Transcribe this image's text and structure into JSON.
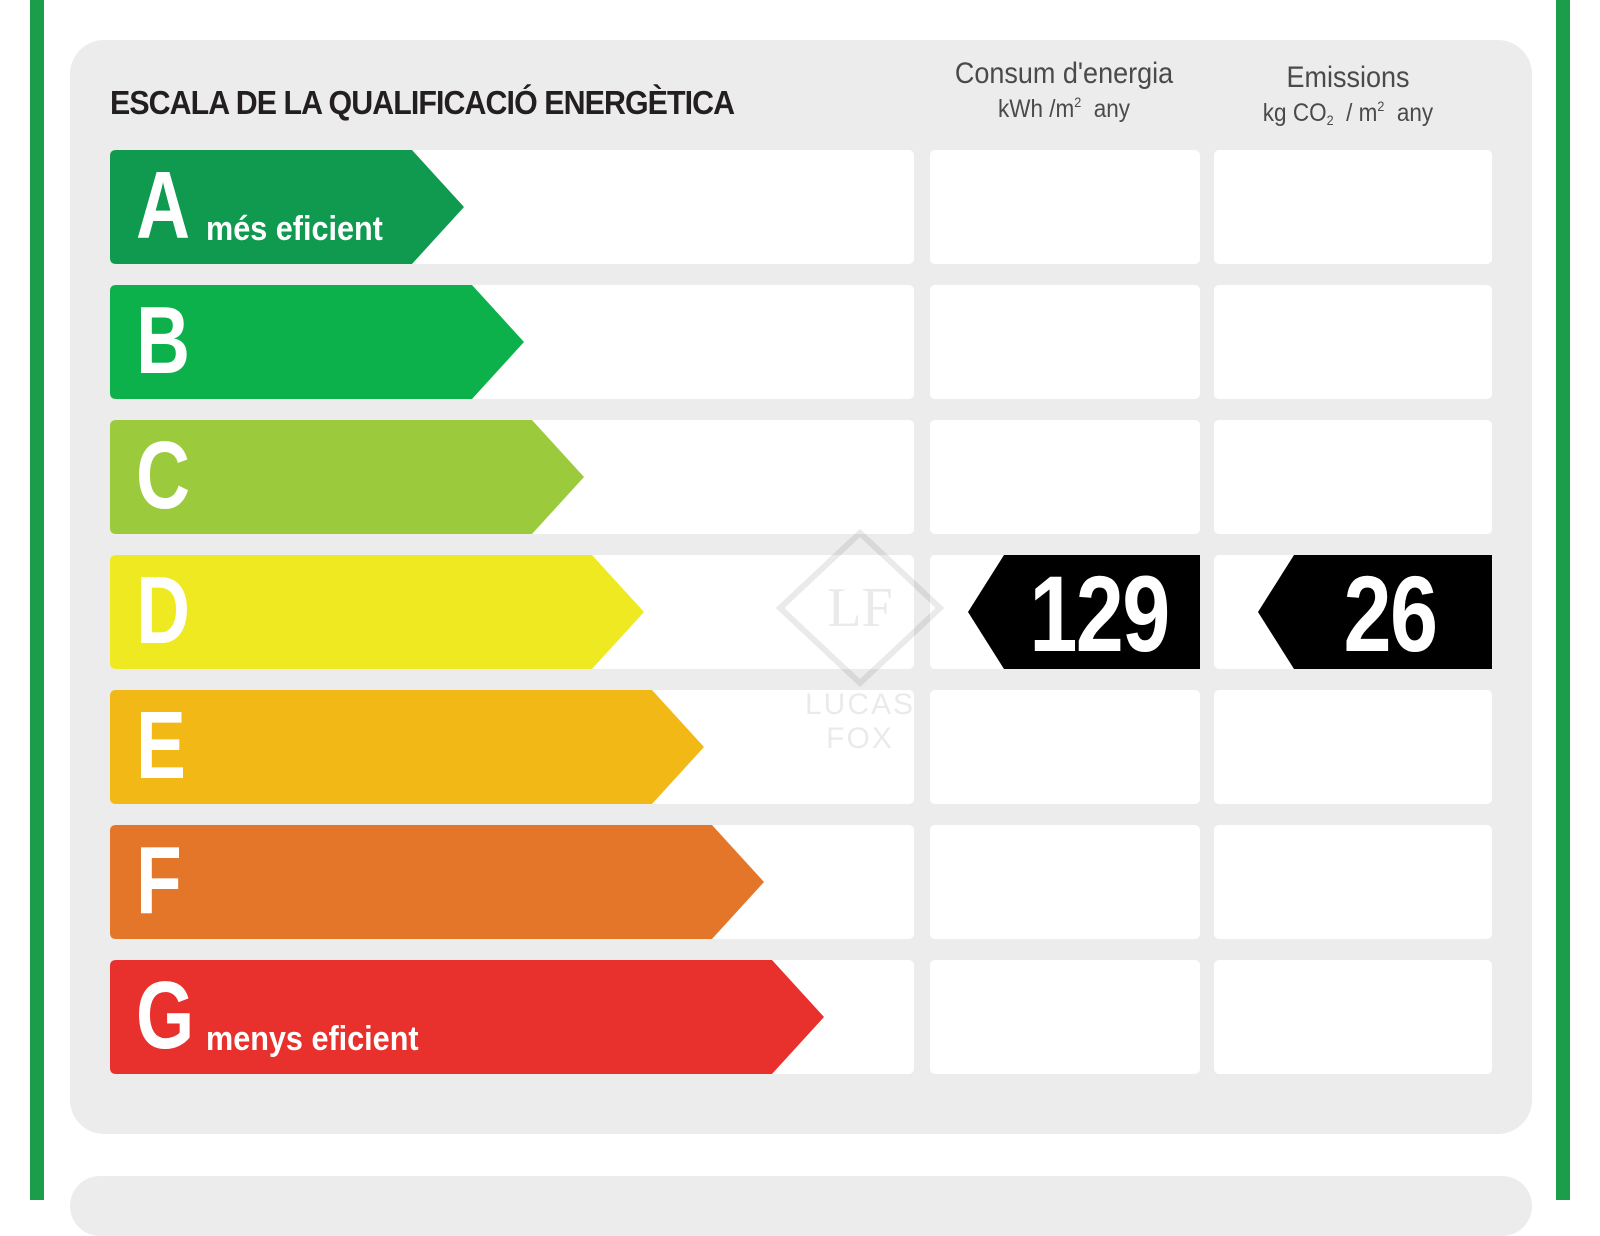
{
  "title": "ESCALA DE LA QUALIFICACIÓ ENERGÈTICA",
  "columns": {
    "energy": {
      "title": "Consum d'energia",
      "unit_main": "kWh /m",
      "unit_exp": "2",
      "unit_tail": "any"
    },
    "emissions": {
      "title": "Emissions",
      "unit_main": "kg CO",
      "unit_sub": "2",
      "unit_mid": " / m",
      "unit_exp": "2",
      "unit_tail": "any"
    }
  },
  "scale": [
    {
      "letter": "A",
      "label": "més eficient",
      "color": "#0f9a4f"
    },
    {
      "letter": "B",
      "label": "",
      "color": "#0db14b"
    },
    {
      "letter": "C",
      "label": "",
      "color": "#9bcb3c"
    },
    {
      "letter": "D",
      "label": "",
      "color": "#eee921"
    },
    {
      "letter": "E",
      "label": "",
      "color": "#f2b816"
    },
    {
      "letter": "F",
      "label": "",
      "color": "#e47629"
    },
    {
      "letter": "G",
      "label": "menys eficient",
      "color": "#e8302c"
    }
  ],
  "rating": {
    "class": "D",
    "energy_value": "129",
    "emissions_value": "26"
  },
  "watermark": {
    "monogram": "LF",
    "text": "LUCAS FOX"
  },
  "colors": {
    "frame": "#1b9d4a",
    "panel": "#ececec",
    "badge": "#000000"
  }
}
